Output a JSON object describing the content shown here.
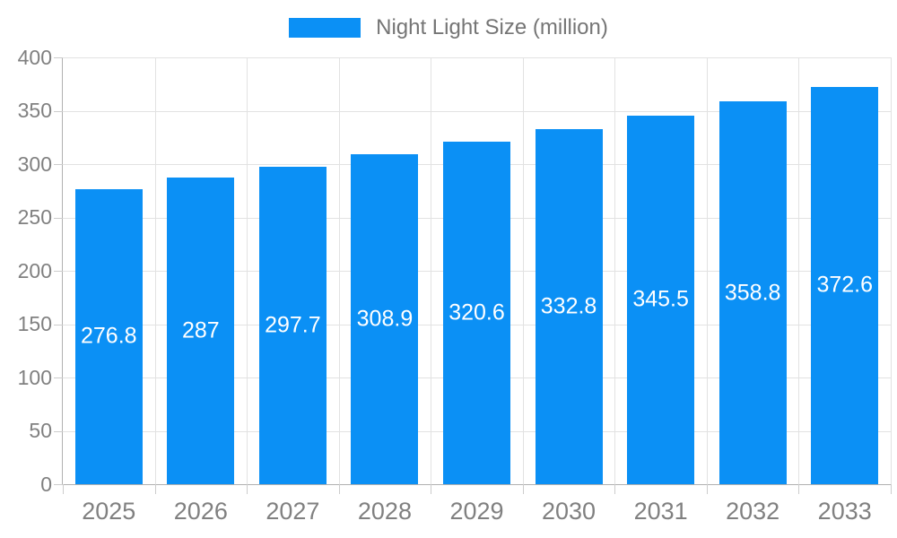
{
  "chart_data": {
    "type": "bar",
    "title": "",
    "legend": {
      "label": "Night Light Size (million)",
      "position": "top-center"
    },
    "categories": [
      "2025",
      "2026",
      "2027",
      "2028",
      "2029",
      "2030",
      "2031",
      "2032",
      "2033"
    ],
    "series": [
      {
        "name": "Night Light Size (million)",
        "values": [
          276.8,
          287,
          297.7,
          308.9,
          320.6,
          332.8,
          345.5,
          358.8,
          372.6
        ],
        "value_labels": [
          "276.8",
          "287",
          "297.7",
          "308.9",
          "320.6",
          "332.8",
          "345.5",
          "358.8",
          "372.6"
        ]
      }
    ],
    "xlabel": "",
    "ylabel": "",
    "ylim": [
      0,
      400
    ],
    "yticks": [
      0,
      50,
      100,
      150,
      200,
      250,
      300,
      350,
      400
    ],
    "grid": true,
    "value_labels_inside_bars": true,
    "colors": {
      "bar": "#0b90f5",
      "value_text": "#ffffff",
      "grid_line": "#e2e2e2",
      "axis_line": "#b0b0b0",
      "tick_line": "#cccccc",
      "axis_text": "#808080",
      "legend_text": "#757575",
      "background": "#ffffff"
    }
  }
}
